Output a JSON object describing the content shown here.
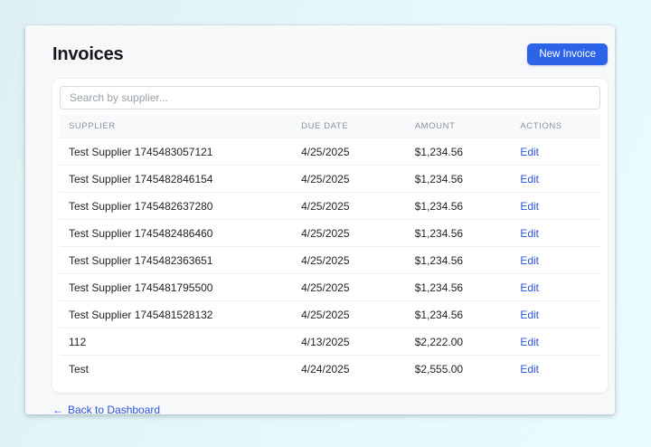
{
  "header": {
    "title": "Invoices",
    "new_invoice_button": "New Invoice"
  },
  "search": {
    "placeholder": "Search by supplier...",
    "value": ""
  },
  "table": {
    "headers": [
      "Supplier",
      "Due Date",
      "Amount",
      "Actions"
    ],
    "rows": [
      {
        "supplier": "Test Supplier 1745483057121",
        "due_date": "4/25/2025",
        "amount": "$1,234.56",
        "action": "Edit"
      },
      {
        "supplier": "Test Supplier 1745482846154",
        "due_date": "4/25/2025",
        "amount": "$1,234.56",
        "action": "Edit"
      },
      {
        "supplier": "Test Supplier 1745482637280",
        "due_date": "4/25/2025",
        "amount": "$1,234.56",
        "action": "Edit"
      },
      {
        "supplier": "Test Supplier 1745482486460",
        "due_date": "4/25/2025",
        "amount": "$1,234.56",
        "action": "Edit"
      },
      {
        "supplier": "Test Supplier 1745482363651",
        "due_date": "4/25/2025",
        "amount": "$1,234.56",
        "action": "Edit"
      },
      {
        "supplier": "Test Supplier 1745481795500",
        "due_date": "4/25/2025",
        "amount": "$1,234.56",
        "action": "Edit"
      },
      {
        "supplier": "Test Supplier 1745481528132",
        "due_date": "4/25/2025",
        "amount": "$1,234.56",
        "action": "Edit"
      },
      {
        "supplier": "112",
        "due_date": "4/13/2025",
        "amount": "$2,222.00",
        "action": "Edit"
      },
      {
        "supplier": "Test",
        "due_date": "4/24/2025",
        "amount": "$2,555.00",
        "action": "Edit"
      }
    ]
  },
  "footer": {
    "back_arrow": "←",
    "back_label": "Back to Dashboard"
  },
  "colors": {
    "accent_button": "#2c63e9",
    "link_blue": "#2d53e0",
    "page_bg_start": "#def0f3",
    "page_bg_end": "#eafcff",
    "card_bg": "#f7f8f9",
    "panel_bg": "#ffffff",
    "header_row_bg": "#f8f9fb",
    "header_text": "#8b929b",
    "row_text": "#20242a",
    "row_border": "#edeff2"
  }
}
